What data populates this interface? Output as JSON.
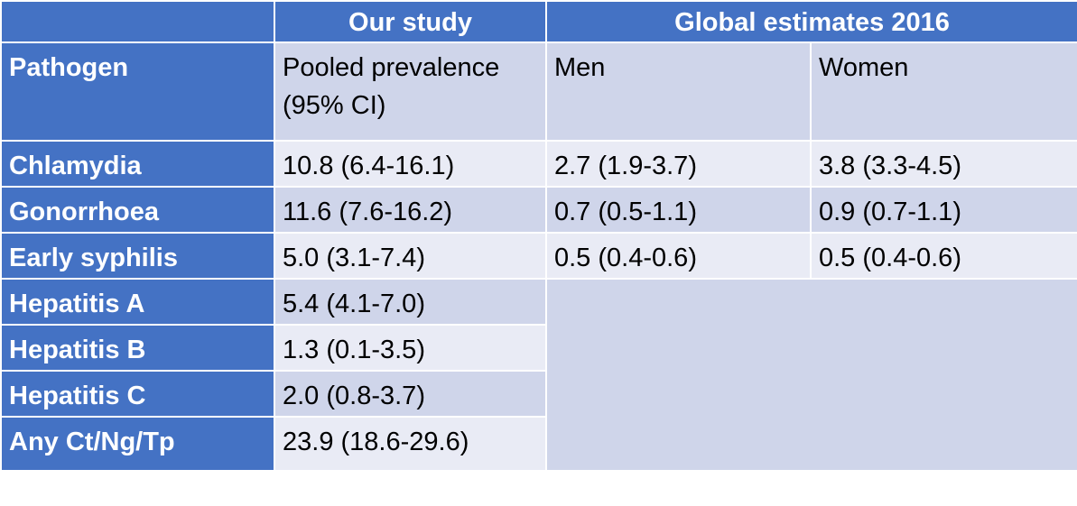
{
  "table": {
    "groups": [
      {
        "label": "Our study",
        "span": 1
      },
      {
        "label": "Global estimates 2016",
        "span": 2
      }
    ],
    "columns": [
      "Pathogen",
      "Pooled prevalence (95% CI)",
      "Men",
      "Women"
    ],
    "rows": [
      [
        "Chlamydia",
        "10.8 (6.4-16.1)",
        "2.7 (1.9-3.7)",
        "3.8 (3.3-4.5)"
      ],
      [
        "Gonorrhoea",
        "11.6 (7.6-16.2)",
        "0.7 (0.5-1.1)",
        "0.9 (0.7-1.1)"
      ],
      [
        "Early syphilis",
        "5.0 (3.1-7.4)",
        "0.5 (0.4-0.6)",
        "0.5 (0.4-0.6)"
      ],
      [
        "Hepatitis A",
        "5.4 (4.1-7.0)"
      ],
      [
        "Hepatitis B",
        "1.3 (0.1-3.5)"
      ],
      [
        "Hepatitis C",
        "2.0 (0.8-3.7)"
      ],
      [
        "Any Ct/Ng/Tp",
        "23.9 (18.6-29.6)"
      ]
    ]
  }
}
